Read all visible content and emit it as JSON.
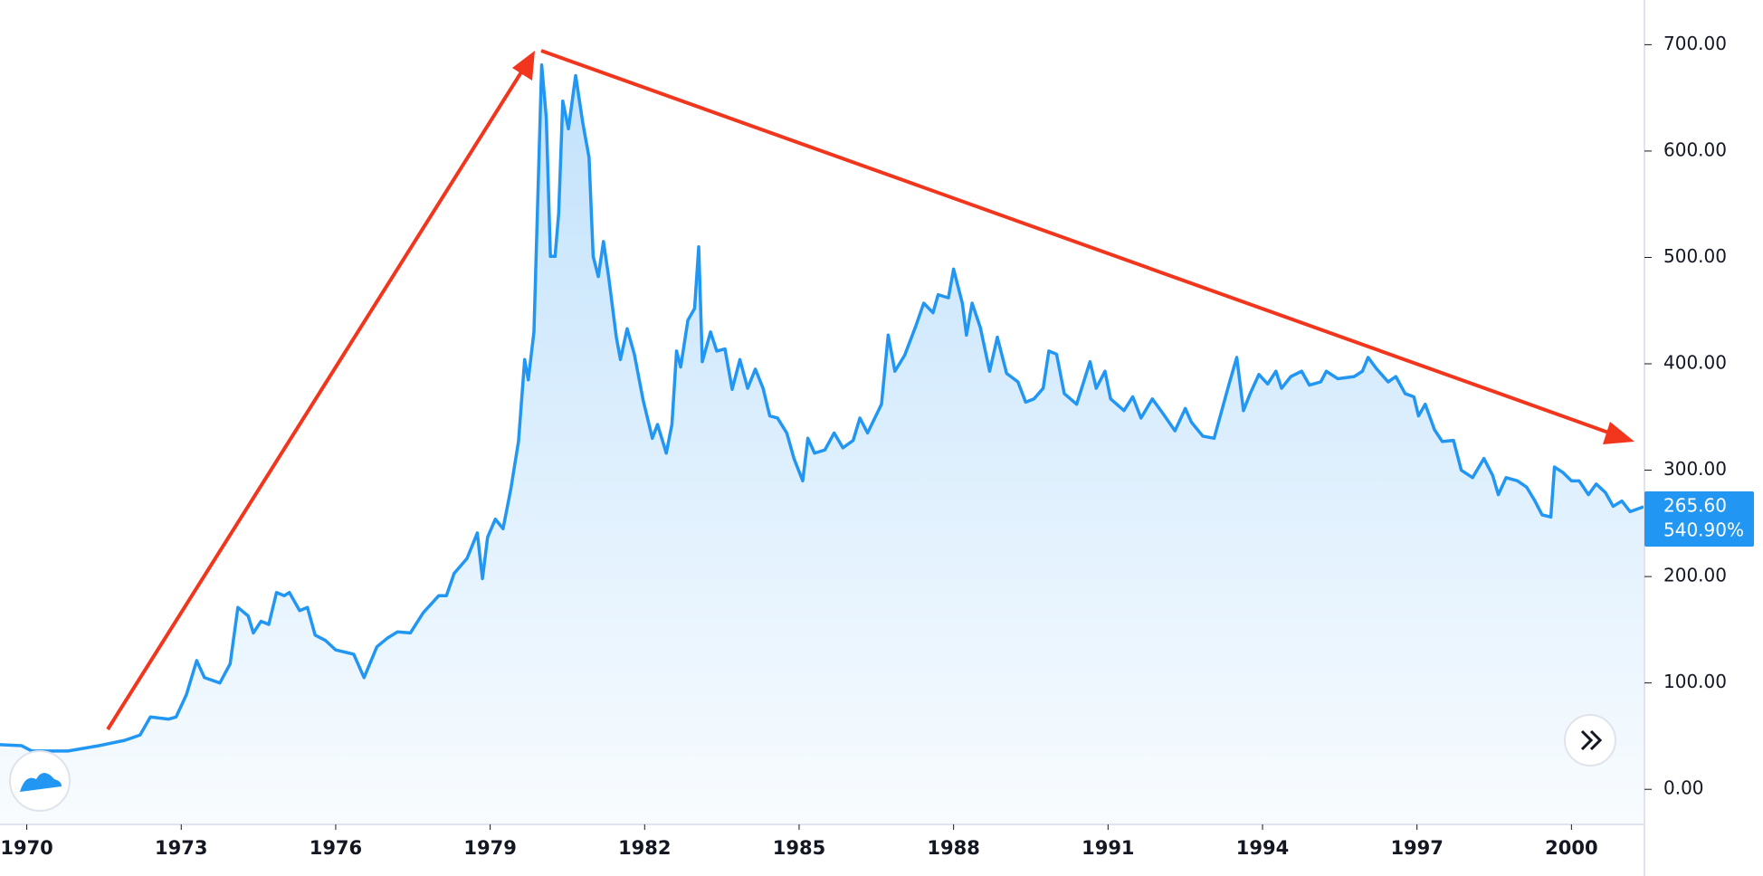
{
  "chart_data": {
    "type": "area",
    "x": [
      1969.48,
      1969.9,
      1970.1,
      1970.8,
      1971.4,
      1971.9,
      1972.2,
      1972.4,
      1972.75,
      1972.9,
      1973.1,
      1973.3,
      1973.45,
      1973.75,
      1973.95,
      1974.1,
      1974.3,
      1974.4,
      1974.55,
      1974.7,
      1974.85,
      1975.0,
      1975.1,
      1975.3,
      1975.45,
      1975.6,
      1975.8,
      1976.0,
      1976.35,
      1976.55,
      1976.8,
      1977.0,
      1977.2,
      1977.45,
      1977.7,
      1978.0,
      1978.15,
      1978.3,
      1978.55,
      1978.75,
      1978.85,
      1978.95,
      1979.1,
      1979.25,
      1979.4,
      1979.55,
      1979.67,
      1979.74,
      1979.85,
      1980.0,
      1980.09,
      1980.17,
      1980.26,
      1980.33,
      1980.41,
      1980.52,
      1980.66,
      1980.8,
      1980.92,
      1981.0,
      1981.1,
      1981.2,
      1981.3,
      1981.45,
      1981.53,
      1981.66,
      1981.8,
      1981.97,
      1982.15,
      1982.25,
      1982.42,
      1982.53,
      1982.62,
      1982.7,
      1982.84,
      1982.97,
      1983.05,
      1983.12,
      1983.28,
      1983.4,
      1983.56,
      1983.7,
      1983.85,
      1984.0,
      1984.15,
      1984.3,
      1984.43,
      1984.58,
      1984.76,
      1984.9,
      1985.07,
      1985.17,
      1985.3,
      1985.5,
      1985.68,
      1985.85,
      1986.05,
      1986.18,
      1986.33,
      1986.46,
      1986.6,
      1986.73,
      1986.86,
      1987.05,
      1987.27,
      1987.42,
      1987.6,
      1987.7,
      1987.9,
      1988.0,
      1988.17,
      1988.25,
      1988.36,
      1988.52,
      1988.7,
      1988.85,
      1989.03,
      1989.25,
      1989.4,
      1989.56,
      1989.74,
      1989.85,
      1990.0,
      1990.15,
      1990.39,
      1990.65,
      1990.77,
      1990.94,
      1991.05,
      1991.31,
      1991.48,
      1991.64,
      1991.86,
      1992.07,
      1992.3,
      1992.5,
      1992.62,
      1992.84,
      1993.06,
      1993.35,
      1993.5,
      1993.63,
      1993.76,
      1993.93,
      1994.1,
      1994.26,
      1994.37,
      1994.55,
      1994.76,
      1994.91,
      1995.13,
      1995.24,
      1995.46,
      1995.78,
      1995.94,
      1996.05,
      1996.22,
      1996.44,
      1996.59,
      1996.77,
      1996.94,
      1997.03,
      1997.16,
      1997.34,
      1997.49,
      1997.71,
      1997.86,
      1998.08,
      1998.3,
      1998.47,
      1998.58,
      1998.73,
      1998.95,
      1999.13,
      1999.28,
      1999.43,
      1999.6,
      1999.67,
      1999.83,
      2000.0,
      2000.15,
      2000.33,
      2000.48,
      2000.66,
      2000.81,
      2000.98,
      2001.14,
      2001.4
    ],
    "values": [
      42,
      41,
      36,
      36,
      41,
      46,
      51,
      68,
      66,
      68,
      89,
      121,
      105,
      100,
      118,
      171,
      163,
      147,
      158,
      155,
      185,
      182,
      185,
      168,
      171,
      145,
      140,
      131,
      127,
      105,
      134,
      142,
      148,
      147,
      166,
      182,
      182,
      203,
      217,
      241,
      198,
      237,
      254,
      245,
      282,
      327,
      404,
      385,
      430,
      681,
      631,
      501,
      501,
      541,
      647,
      621,
      671,
      626,
      594,
      501,
      482,
      515,
      482,
      425,
      404,
      433,
      409,
      366,
      330,
      343,
      316,
      343,
      412,
      397,
      441,
      452,
      510,
      402,
      430,
      412,
      414,
      376,
      404,
      377,
      395,
      377,
      351,
      349,
      335,
      311,
      290,
      330,
      316,
      319,
      335,
      321,
      328,
      349,
      335,
      348,
      362,
      427,
      393,
      408,
      436,
      457,
      448,
      465,
      462,
      489,
      457,
      427,
      457,
      434,
      393,
      425,
      391,
      383,
      364,
      367,
      377,
      412,
      409,
      372,
      362,
      402,
      377,
      393,
      367,
      356,
      369,
      349,
      367,
      353,
      337,
      358,
      345,
      332,
      330,
      381,
      406,
      356,
      372,
      390,
      381,
      393,
      377,
      388,
      393,
      380,
      383,
      393,
      386,
      388,
      393,
      406,
      395,
      383,
      388,
      372,
      369,
      351,
      362,
      338,
      327,
      328,
      300,
      293,
      311,
      295,
      277,
      293,
      290,
      284,
      272,
      258,
      256,
      303,
      298,
      290,
      290,
      277,
      287,
      279,
      266,
      271,
      261,
      265.6
    ],
    "color": "#2196f3",
    "xlim": [
      1969.48,
      2001.4
    ],
    "xticks": [
      1970,
      1973,
      1976,
      1979,
      1982,
      1985,
      1988,
      1991,
      1994,
      1997,
      2000
    ],
    "ylim": [
      -33,
      742
    ],
    "yticks": [
      {
        "value": 0,
        "label": "0.00"
      },
      {
        "value": 100,
        "label": "100.00"
      },
      {
        "value": 200,
        "label": "200.00"
      },
      {
        "value": 300,
        "label": "300.00"
      },
      {
        "value": 400,
        "label": "400.00"
      },
      {
        "value": 500,
        "label": "500.00"
      },
      {
        "value": 600,
        "label": "600.00"
      },
      {
        "value": 700,
        "label": "700.00"
      }
    ],
    "price_label": "265.60",
    "change_label": "540.90%"
  }
}
